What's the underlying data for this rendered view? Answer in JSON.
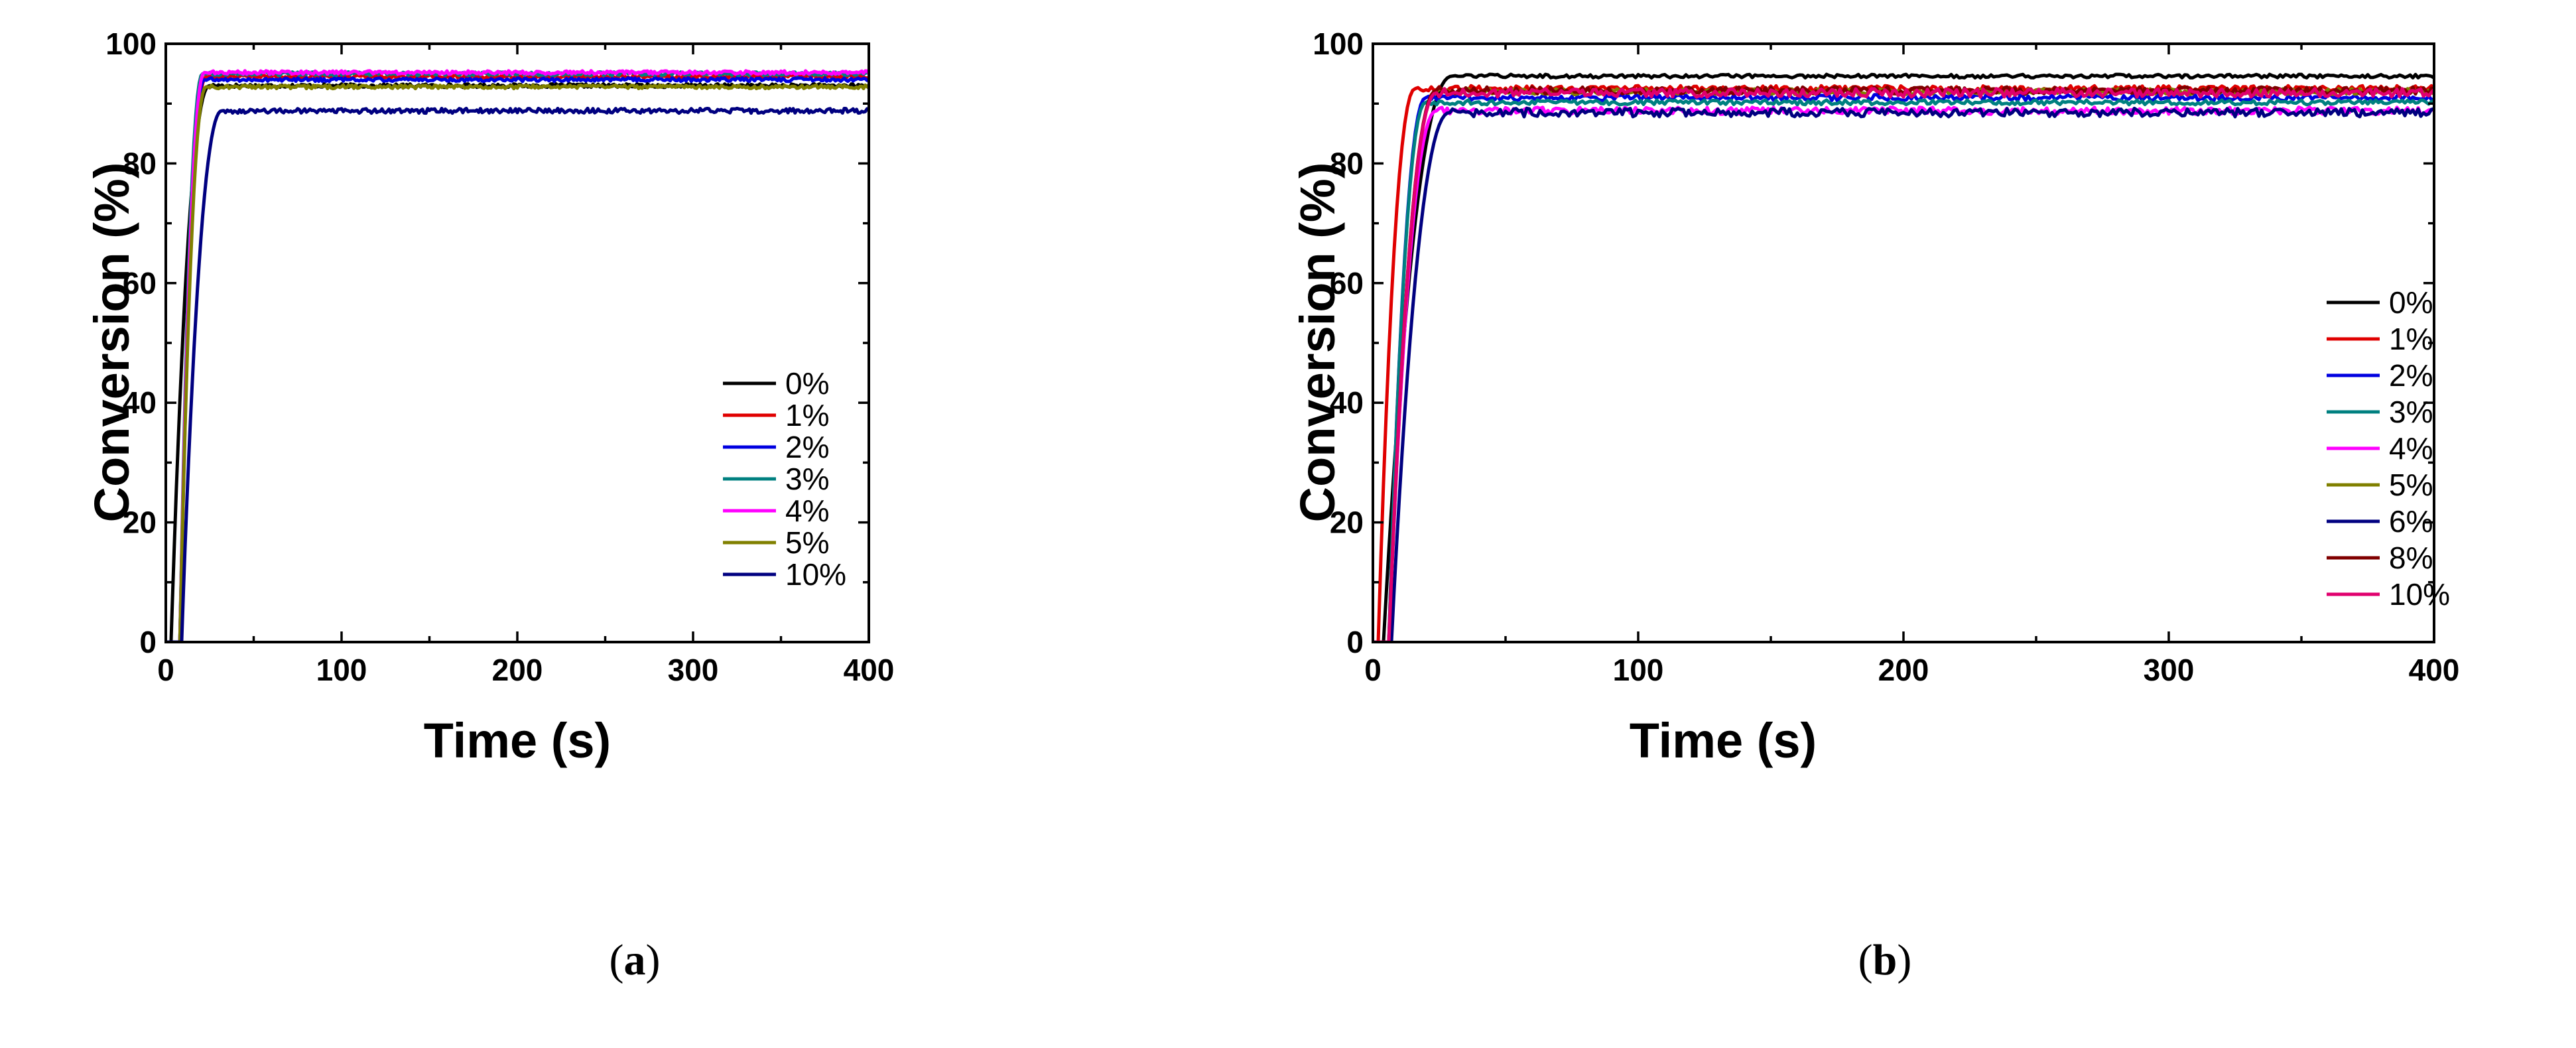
{
  "chart_data": [
    {
      "type": "line",
      "panel": "a",
      "caption_letter": "a",
      "title": "",
      "xlabel": "Time (s)",
      "ylabel": "Conversion (%)",
      "xlim": [
        0,
        400
      ],
      "ylim": [
        0,
        100
      ],
      "xticks": [
        0,
        100,
        200,
        300,
        400
      ],
      "yticks": [
        0,
        20,
        40,
        60,
        80,
        100
      ],
      "grid": false,
      "legend_position": "bottom-right",
      "series": [
        {
          "name": "0%",
          "color": "#000000",
          "onset": 3,
          "rise": 22,
          "plateau": 93.0,
          "noise": 0.3
        },
        {
          "name": "1%",
          "color": "#e00000",
          "onset": 8,
          "rise": 15,
          "plateau": 94.5,
          "noise": 0.3
        },
        {
          "name": "2%",
          "color": "#0000e0",
          "onset": 8,
          "rise": 14,
          "plateau": 94.0,
          "noise": 0.3
        },
        {
          "name": "3%",
          "color": "#008080",
          "onset": 8,
          "rise": 13,
          "plateau": 95.0,
          "noise": 0.3
        },
        {
          "name": "4%",
          "color": "#ff00ff",
          "onset": 8,
          "rise": 14,
          "plateau": 95.2,
          "noise": 0.3
        },
        {
          "name": "5%",
          "color": "#808000",
          "onset": 8,
          "rise": 15,
          "plateau": 92.8,
          "noise": 0.3
        },
        {
          "name": "10%",
          "color": "#000080",
          "onset": 9,
          "rise": 23,
          "plateau": 88.8,
          "noise": 0.4
        }
      ]
    },
    {
      "type": "line",
      "panel": "b",
      "caption_letter": "b",
      "title": "",
      "xlabel": "Time (s)",
      "ylabel": "Conversion (%)",
      "xlim": [
        0,
        400
      ],
      "ylim": [
        0,
        100
      ],
      "xticks": [
        0,
        100,
        200,
        300,
        400
      ],
      "yticks": [
        0,
        20,
        40,
        60,
        80,
        100
      ],
      "grid": false,
      "legend_position": "right",
      "series": [
        {
          "name": "0%",
          "color": "#000000",
          "onset": 4,
          "rise": 26,
          "plateau": 94.6,
          "noise": 0.3
        },
        {
          "name": "1%",
          "color": "#e00000",
          "onset": 2,
          "rise": 14,
          "plateau": 92.5,
          "noise": 0.5
        },
        {
          "name": "2%",
          "color": "#0000e0",
          "onset": 6,
          "rise": 14,
          "plateau": 91.0,
          "noise": 0.5
        },
        {
          "name": "3%",
          "color": "#008080",
          "onset": 6,
          "rise": 14,
          "plateau": 90.2,
          "noise": 0.4
        },
        {
          "name": "4%",
          "color": "#ff00ff",
          "onset": 6,
          "rise": 18,
          "plateau": 88.8,
          "noise": 0.6
        },
        {
          "name": "5%",
          "color": "#808000",
          "onset": 6,
          "rise": 18,
          "plateau": 92.0,
          "noise": 0.5
        },
        {
          "name": "6%",
          "color": "#000080",
          "onset": 7,
          "rise": 22,
          "plateau": 88.5,
          "noise": 0.7
        },
        {
          "name": "8%",
          "color": "#800000",
          "onset": 6,
          "rise": 18,
          "plateau": 92.2,
          "noise": 0.6
        },
        {
          "name": "10%",
          "color": "#e0006e",
          "onset": 6,
          "rise": 18,
          "plateau": 91.8,
          "noise": 0.7
        }
      ]
    }
  ]
}
